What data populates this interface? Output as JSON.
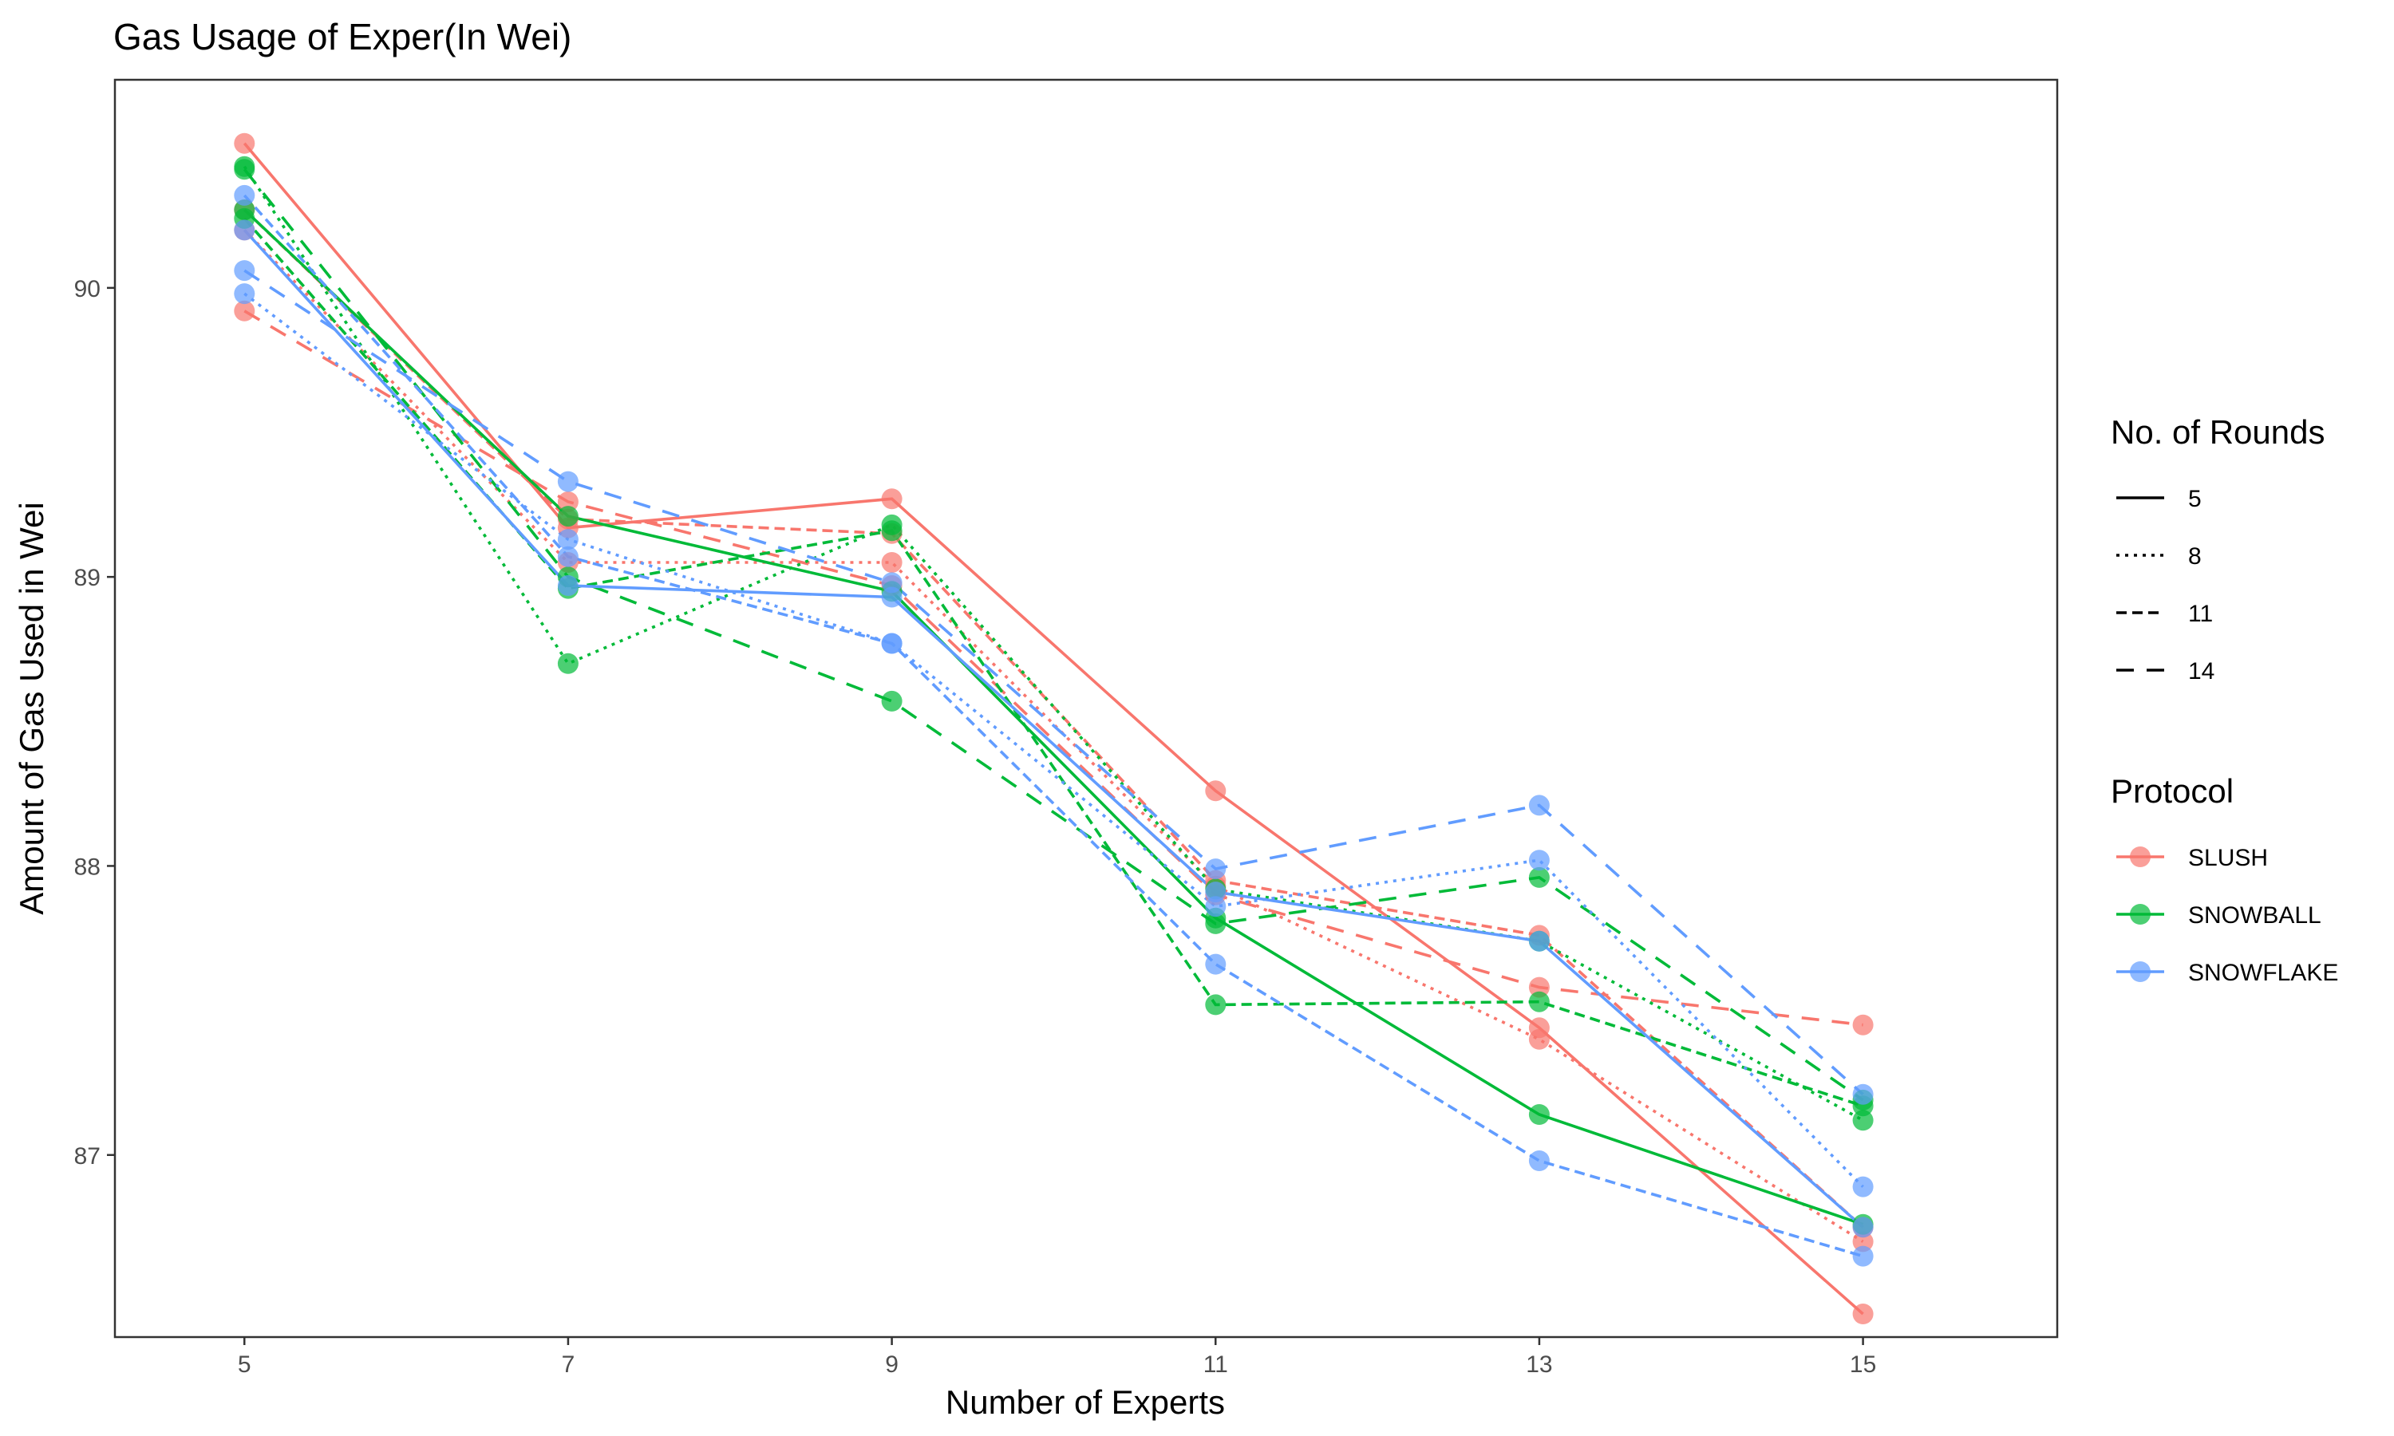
{
  "chart_data": {
    "type": "line",
    "title": "Gas Usage of  Exper(In Wei)",
    "xlabel": "Number of Experts",
    "ylabel": "Amount of Gas Used in Wei",
    "x": [
      5,
      7,
      9,
      11,
      13,
      15
    ],
    "xlim": [
      4.2,
      16.2
    ],
    "ylim": [
      86.37,
      90.72
    ],
    "x_ticks": [
      5,
      7,
      9,
      11,
      13,
      15
    ],
    "y_ticks": [
      87,
      88,
      89,
      90
    ],
    "grid": false,
    "legend_position": "right",
    "colors": {
      "SLUSH": "#F8766D",
      "SNOWBALL": "#00BA38",
      "SNOWFLAKE": "#619CFF"
    },
    "legends": [
      {
        "title": "No. of Rounds",
        "entries": [
          "5",
          "8",
          "11",
          "14"
        ]
      },
      {
        "title": "Protocol",
        "entries": [
          "SLUSH",
          "SNOWBALL",
          "SNOWFLAKE"
        ]
      }
    ],
    "series": [
      {
        "protocol": "SLUSH",
        "rounds": "5",
        "values": [
          90.5,
          89.17,
          89.27,
          88.26,
          87.44,
          86.45
        ]
      },
      {
        "protocol": "SLUSH",
        "rounds": "8",
        "values": [
          90.2,
          89.05,
          89.05,
          87.93,
          87.4,
          86.7
        ]
      },
      {
        "protocol": "SLUSH",
        "rounds": "11",
        "values": [
          90.27,
          89.2,
          89.15,
          87.95,
          87.76,
          86.75
        ]
      },
      {
        "protocol": "SLUSH",
        "rounds": "14",
        "values": [
          89.92,
          89.26,
          88.97,
          87.9,
          87.58,
          87.45
        ]
      },
      {
        "protocol": "SNOWBALL",
        "rounds": "5",
        "values": [
          90.27,
          89.21,
          88.95,
          87.82,
          87.14,
          86.76
        ]
      },
      {
        "protocol": "SNOWBALL",
        "rounds": "8",
        "values": [
          90.42,
          88.7,
          89.18,
          87.92,
          87.74,
          87.12
        ]
      },
      {
        "protocol": "SNOWBALL",
        "rounds": "11",
        "values": [
          90.24,
          88.96,
          89.16,
          87.52,
          87.53,
          87.17
        ]
      },
      {
        "protocol": "SNOWBALL",
        "rounds": "14",
        "values": [
          90.41,
          89.0,
          88.57,
          87.8,
          87.96,
          87.19
        ]
      },
      {
        "protocol": "SNOWFLAKE",
        "rounds": "5",
        "values": [
          90.2,
          88.97,
          88.93,
          87.91,
          87.74,
          86.75
        ]
      },
      {
        "protocol": "SNOWFLAKE",
        "rounds": "8",
        "values": [
          89.98,
          89.13,
          88.77,
          87.86,
          88.02,
          86.89
        ]
      },
      {
        "protocol": "SNOWFLAKE",
        "rounds": "11",
        "values": [
          90.32,
          89.07,
          88.77,
          87.66,
          86.98,
          86.65
        ]
      },
      {
        "protocol": "SNOWFLAKE",
        "rounds": "14",
        "values": [
          90.06,
          89.33,
          88.98,
          87.99,
          88.21,
          87.21
        ]
      }
    ]
  }
}
